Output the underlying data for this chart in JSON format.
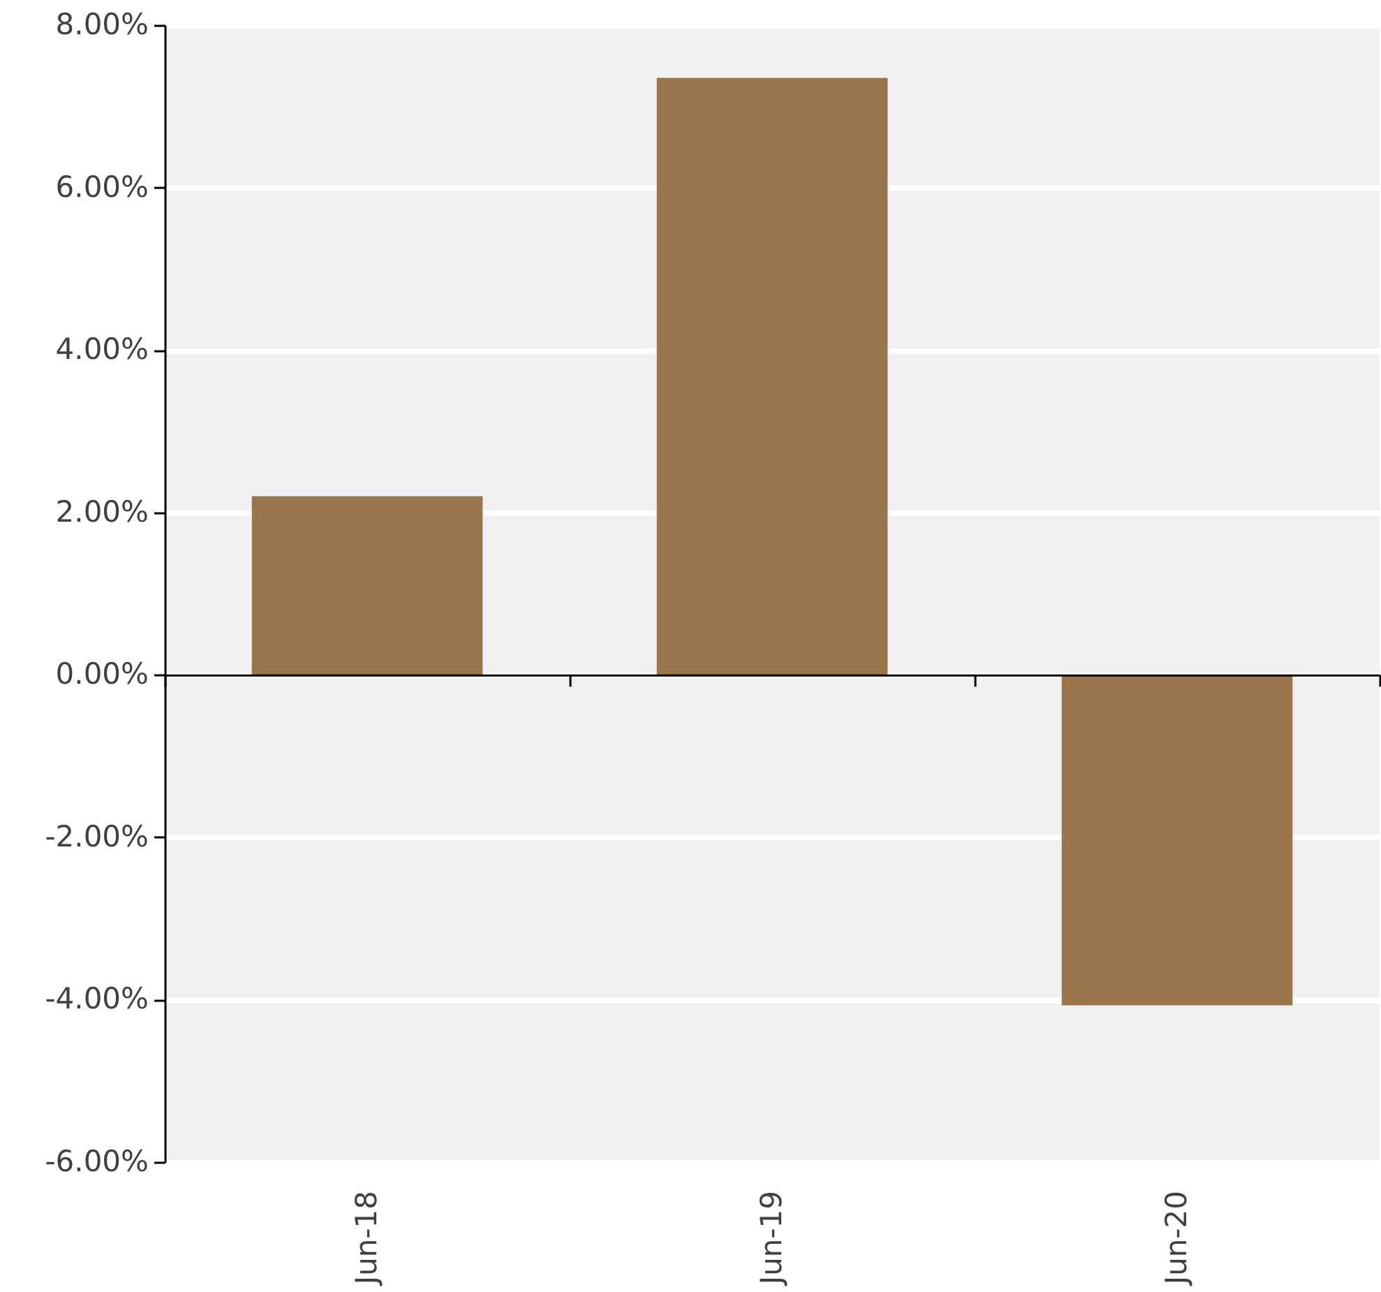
{
  "chart_data": {
    "type": "bar",
    "categories": [
      "Jun-18",
      "Jun-19",
      "Jun-20"
    ],
    "values": [
      2.2,
      7.35,
      -4.07
    ],
    "color": "#9a744b",
    "ylim": [
      -6,
      8
    ],
    "yticks": [
      {
        "value": -6,
        "label": "-6.00%"
      },
      {
        "value": -4,
        "label": "-4.00%"
      },
      {
        "value": -2,
        "label": "-2.00%"
      },
      {
        "value": 0,
        "label": "0.00%"
      },
      {
        "value": 2,
        "label": "2.00%"
      },
      {
        "value": 4,
        "label": "4.00%"
      },
      {
        "value": 6,
        "label": "6.00%"
      },
      {
        "value": 8,
        "label": "8.00%"
      }
    ],
    "grid": "y"
  }
}
